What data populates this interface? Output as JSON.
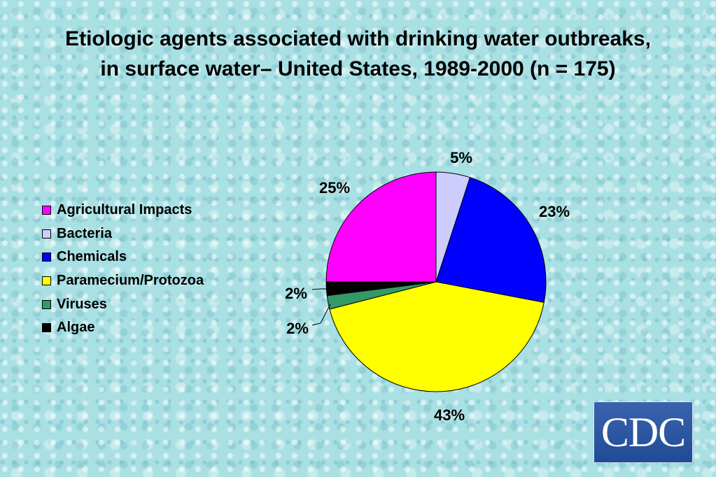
{
  "title": {
    "line1": "Etiologic agents associated with drinking water outbreaks,",
    "line2": "in surface water– United States, 1989-2000 (n = 175)"
  },
  "chart_data": {
    "type": "pie",
    "title": "Etiologic agents associated with drinking water outbreaks, in surface water– United States, 1989-2000 (n = 175)",
    "legend_position": "left",
    "start": "top, clockwise from 12 o'clock",
    "slices": [
      {
        "label": "Bacteria",
        "value": 5,
        "display": "5%",
        "color": "#ccccff"
      },
      {
        "label": "Chemicals",
        "value": 23,
        "display": "23%",
        "color": "#0000ff"
      },
      {
        "label": "Paramecium/Protozoa",
        "value": 43,
        "display": "43%",
        "color": "#ffff00"
      },
      {
        "label": "Viruses",
        "value": 2,
        "display": "2%",
        "color": "#339966"
      },
      {
        "label": "Algae",
        "value": 2,
        "display": "2%",
        "color": "#000000"
      },
      {
        "label": "Agricultural Impacts",
        "value": 25,
        "display": "25%",
        "color": "#ff00ff"
      }
    ]
  },
  "legend": {
    "items": [
      {
        "label": "Agricultural Impacts",
        "color": "#ff00ff"
      },
      {
        "label": "Bacteria",
        "color": "#ccccff"
      },
      {
        "label": "Chemicals",
        "color": "#0000ff"
      },
      {
        "label": "Paramecium/Protozoa",
        "color": "#ffff00"
      },
      {
        "label": "Viruses",
        "color": "#339966"
      },
      {
        "label": "Algae",
        "color": "#000000"
      }
    ]
  },
  "logo": {
    "text": "CDC"
  }
}
